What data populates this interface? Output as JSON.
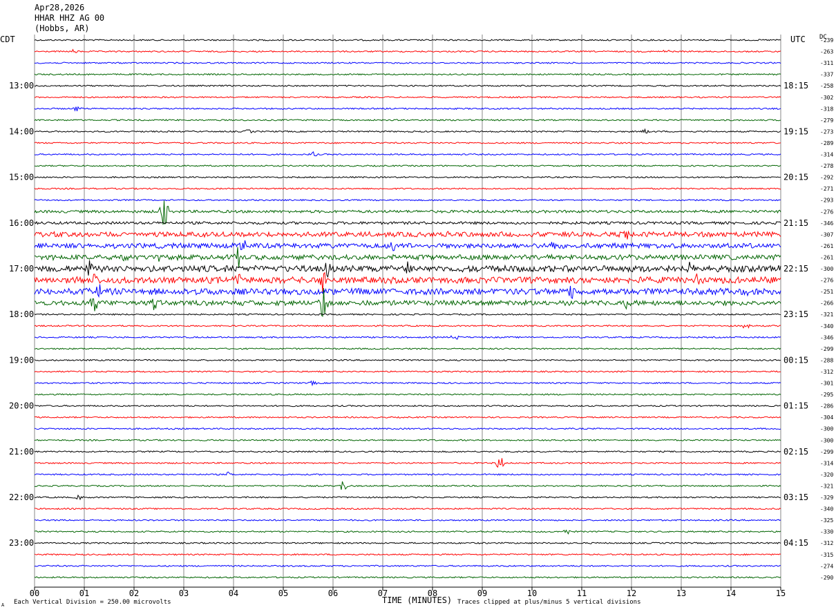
{
  "header": {
    "date": "Apr28,2026",
    "station": "HHAR HHZ AG 00",
    "location": "(Hobbs, AR)"
  },
  "left_tz": "CDT",
  "right_tz": "UTC",
  "dc_label": "DC",
  "footer": {
    "scale_note": "Each Vertical Division =  250.00 microvolts",
    "clip_note": "Traces clipped at plus/minus 5 vertical divisions",
    "corner_mark": "A"
  },
  "colors": {
    "trace_cycle": [
      "#000000",
      "#ff0000",
      "#0000ff",
      "#006400"
    ],
    "grid": "#555555"
  },
  "chart_data": {
    "type": "line",
    "title": "",
    "xlabel": "TIME (MINUTES)",
    "xlim": [
      0,
      15
    ],
    "x_tick_labels": [
      "00",
      "01",
      "02",
      "03",
      "04",
      "05",
      "06",
      "07",
      "08",
      "09",
      "10",
      "11",
      "12",
      "13",
      "14",
      "15"
    ],
    "left_time_labels": [
      {
        "row": 4,
        "text": "13:00"
      },
      {
        "row": 8,
        "text": "14:00"
      },
      {
        "row": 12,
        "text": "15:00"
      },
      {
        "row": 16,
        "text": "16:00"
      },
      {
        "row": 20,
        "text": "17:00"
      },
      {
        "row": 24,
        "text": "18:00"
      },
      {
        "row": 28,
        "text": "19:00"
      },
      {
        "row": 32,
        "text": "20:00"
      },
      {
        "row": 36,
        "text": "21:00"
      },
      {
        "row": 40,
        "text": "22:00"
      },
      {
        "row": 44,
        "text": "23:00"
      }
    ],
    "right_time_labels": [
      {
        "row": 4,
        "text": "18:15"
      },
      {
        "row": 8,
        "text": "19:15"
      },
      {
        "row": 12,
        "text": "20:15"
      },
      {
        "row": 16,
        "text": "21:15"
      },
      {
        "row": 20,
        "text": "22:15"
      },
      {
        "row": 24,
        "text": "23:15"
      },
      {
        "row": 28,
        "text": "00:15"
      },
      {
        "row": 32,
        "text": "01:15"
      },
      {
        "row": 36,
        "text": "02:15"
      },
      {
        "row": 40,
        "text": "03:15"
      },
      {
        "row": 44,
        "text": "04:15"
      }
    ],
    "dc_offsets": [
      "-239",
      "-263",
      "-311",
      "-337",
      "-258",
      "-302",
      "-318",
      "-279",
      "-273",
      "-289",
      "-314",
      "-278",
      "-292",
      "-271",
      "-293",
      "-276",
      "-346",
      "-307",
      "-261",
      "-261",
      "-300",
      "-276",
      "-251",
      "-266",
      "-321",
      "-340",
      "-346",
      "-299",
      "-288",
      "-312",
      "-301",
      "-295",
      "-286",
      "-304",
      "-300",
      "-300",
      "-299",
      "-314",
      "-320",
      "-321",
      "-329",
      "-340",
      "-325",
      "-330",
      "-312",
      "-315",
      "-274",
      "-290"
    ],
    "trace_activity": [
      1,
      1,
      1,
      1,
      1,
      1,
      1,
      1,
      1,
      1,
      1,
      1,
      1,
      1,
      1,
      2,
      2,
      3,
      3,
      3,
      4,
      4,
      4,
      3,
      1,
      1,
      1,
      1,
      1,
      1,
      1,
      1,
      1,
      1,
      1,
      1,
      1,
      1,
      1,
      1,
      1,
      1,
      1,
      1,
      1,
      1,
      1,
      1
    ],
    "events": [
      {
        "row": 1,
        "minute": 0.8,
        "amp": 4
      },
      {
        "row": 1,
        "minute": 12.7,
        "amp": 4
      },
      {
        "row": 6,
        "minute": 0.85,
        "amp": 5
      },
      {
        "row": 8,
        "minute": 4.3,
        "amp": 4
      },
      {
        "row": 8,
        "minute": 12.3,
        "amp": 5
      },
      {
        "row": 10,
        "minute": 5.6,
        "amp": 5
      },
      {
        "row": 15,
        "minute": 2.6,
        "amp": 28
      },
      {
        "row": 17,
        "minute": 11.9,
        "amp": 11
      },
      {
        "row": 17,
        "minute": 8.3,
        "amp": 6
      },
      {
        "row": 18,
        "minute": 4.2,
        "amp": 13
      },
      {
        "row": 18,
        "minute": 10.4,
        "amp": 10
      },
      {
        "row": 18,
        "minute": 7.2,
        "amp": 9
      },
      {
        "row": 19,
        "minute": 1.8,
        "amp": 11
      },
      {
        "row": 19,
        "minute": 2.5,
        "amp": 8
      },
      {
        "row": 19,
        "minute": 4.1,
        "amp": 18
      },
      {
        "row": 20,
        "minute": 1.1,
        "amp": 14
      },
      {
        "row": 20,
        "minute": 5.9,
        "amp": 14
      },
      {
        "row": 20,
        "minute": 7.5,
        "amp": 11
      },
      {
        "row": 20,
        "minute": 13.2,
        "amp": 14
      },
      {
        "row": 21,
        "minute": 1.2,
        "amp": 16
      },
      {
        "row": 21,
        "minute": 4.1,
        "amp": 12
      },
      {
        "row": 21,
        "minute": 5.8,
        "amp": 20
      },
      {
        "row": 21,
        "minute": 13.3,
        "amp": 12
      },
      {
        "row": 22,
        "minute": 1.3,
        "amp": 12
      },
      {
        "row": 22,
        "minute": 3.3,
        "amp": 9
      },
      {
        "row": 22,
        "minute": 10.8,
        "amp": 14
      },
      {
        "row": 22,
        "minute": 14.3,
        "amp": 12
      },
      {
        "row": 23,
        "minute": 2.4,
        "amp": 12
      },
      {
        "row": 23,
        "minute": 5.8,
        "amp": 32
      },
      {
        "row": 23,
        "minute": 11.9,
        "amp": 9
      },
      {
        "row": 23,
        "minute": 1.2,
        "amp": 16
      },
      {
        "row": 25,
        "minute": 14.3,
        "amp": 5
      },
      {
        "row": 26,
        "minute": 8.45,
        "amp": 6
      },
      {
        "row": 30,
        "minute": 5.6,
        "amp": 4
      },
      {
        "row": 37,
        "minute": 9.35,
        "amp": 12
      },
      {
        "row": 38,
        "minute": 3.9,
        "amp": 4
      },
      {
        "row": 39,
        "minute": 6.2,
        "amp": 10
      },
      {
        "row": 40,
        "minute": 0.9,
        "amp": 4
      },
      {
        "row": 43,
        "minute": 10.7,
        "amp": 5
      }
    ]
  }
}
